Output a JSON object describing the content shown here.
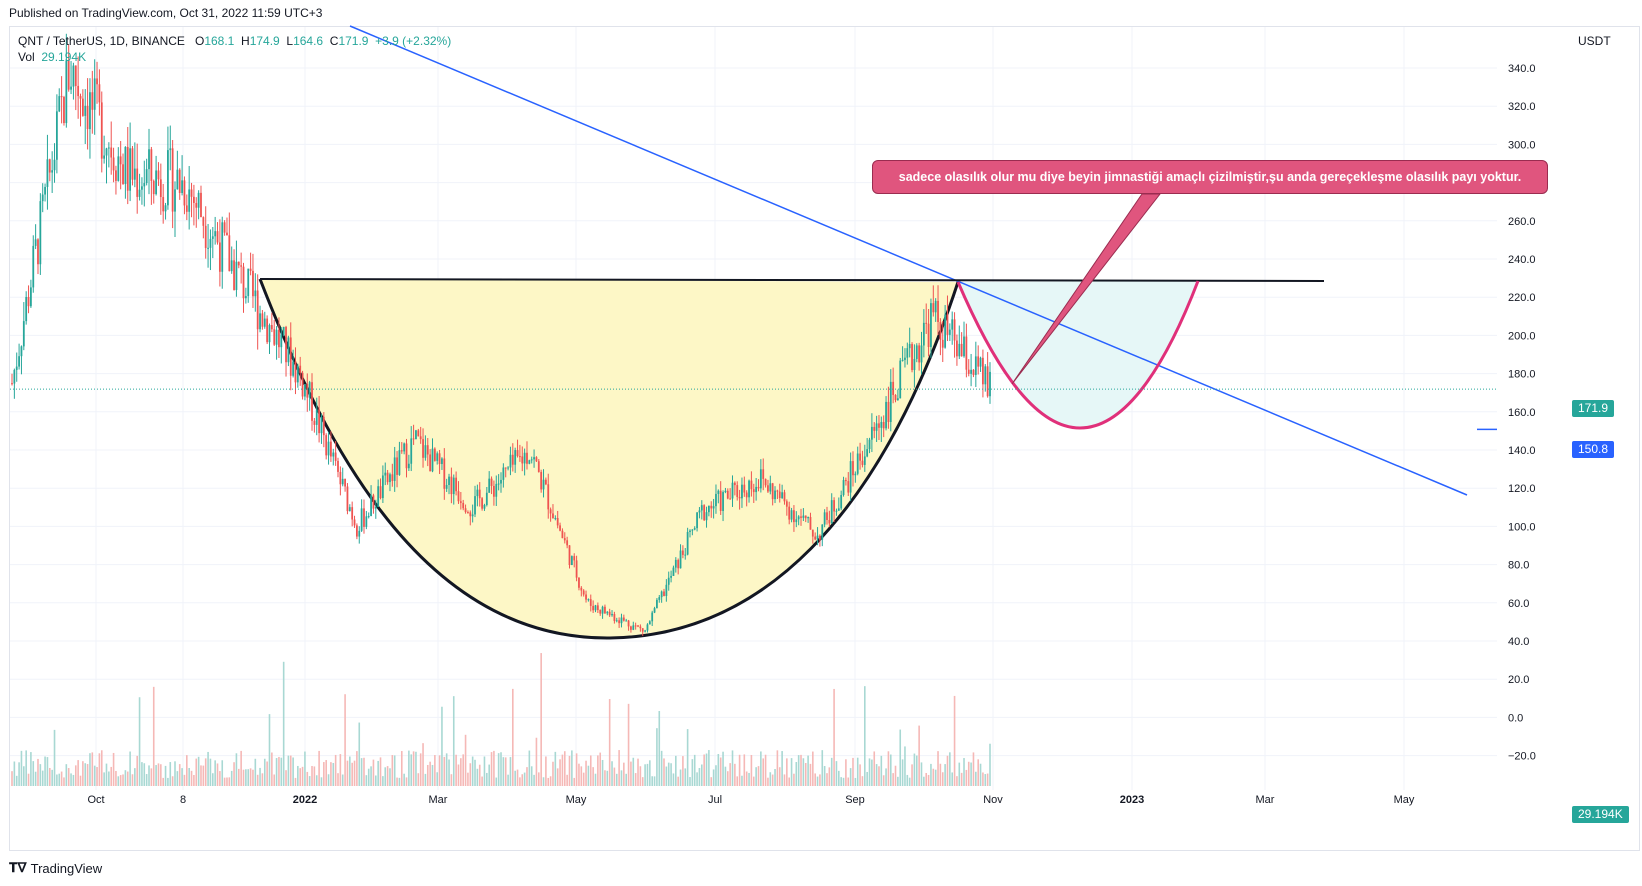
{
  "published_text": "Published on TradingView.com, Oct 31, 2022 11:59 UTC+3",
  "legend": {
    "symbol": "QNT / TetherUS, 1D, BINANCE",
    "open_label": "O",
    "open": "168.1",
    "high_label": "H",
    "high": "174.9",
    "low_label": "L",
    "low": "164.6",
    "close_label": "C",
    "close": "171.9",
    "change": "+3.9 (+2.32%)",
    "vol_label": "Vol",
    "vol_value": "29.194K"
  },
  "axis_unit": "USDT",
  "price_ticks": [
    "340.0",
    "320.0",
    "300.0",
    "280.0",
    "260.0",
    "240.0",
    "220.0",
    "200.0",
    "180.0",
    "160.0",
    "140.0",
    "120.0",
    "100.0",
    "80.0",
    "60.0",
    "40.0",
    "20.0",
    "0.0",
    "−20.0"
  ],
  "time_ticks": [
    "Oct",
    "8",
    "2022",
    "Mar",
    "May",
    "Jul",
    "Sep",
    "Nov",
    "2023",
    "Mar",
    "May"
  ],
  "tags": {
    "last_price": "171.9",
    "horizontal_line": "150.8",
    "volume": "29.194K"
  },
  "annotation": "sadece olasılık olur mu diye beyin jimnastiği amaçlı çizilmiştir,şu anda gereçekleşme olasılık payı yoktur.",
  "footer": "TradingView",
  "colors": {
    "up": "#26a69a",
    "down": "#ef5350",
    "trendline": "#2962ff",
    "cup_fill": "#fdf7c6",
    "handle_fill": "#e6f7f7",
    "handle_line": "#e0307a",
    "annotation_bg": "#e0557e"
  },
  "chart_data": {
    "type": "candlestick",
    "symbol": "QNT / TetherUS",
    "interval": "1D",
    "exchange": "BINANCE",
    "y_unit": "USDT",
    "ylim": [
      -30,
      345
    ],
    "last": {
      "open": 168.1,
      "high": 174.9,
      "low": 164.6,
      "close": 171.9,
      "change": 3.9,
      "change_pct": 2.32
    },
    "horizontal_level": 150.8,
    "volume_last": "29.194K",
    "approx_close_path": [
      {
        "date": "2021-09",
        "close": 175
      },
      {
        "date": "2021-09-20",
        "close": 340
      },
      {
        "date": "2021-10-15",
        "close": 285
      },
      {
        "date": "2021-11-08",
        "close": 280
      },
      {
        "date": "2021-12-07",
        "close": 228
      },
      {
        "date": "2021-12-20",
        "close": 180
      },
      {
        "date": "2022-01-18",
        "close": 100
      },
      {
        "date": "2022-02-10",
        "close": 145
      },
      {
        "date": "2022-03-15",
        "close": 110
      },
      {
        "date": "2022-04-05",
        "close": 140
      },
      {
        "date": "2022-05-12",
        "close": 60
      },
      {
        "date": "2022-06-18",
        "close": 45
      },
      {
        "date": "2022-07-20",
        "close": 108
      },
      {
        "date": "2022-08-15",
        "close": 125
      },
      {
        "date": "2022-09-05",
        "close": 95
      },
      {
        "date": "2022-10-01",
        "close": 150
      },
      {
        "date": "2022-10-12",
        "close": 210
      },
      {
        "date": "2022-10-31",
        "close": 171.9
      }
    ]
  }
}
